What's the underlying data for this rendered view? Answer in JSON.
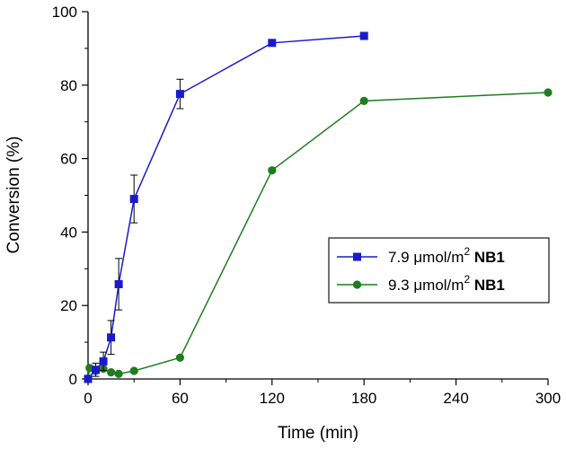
{
  "chart_data": {
    "type": "line",
    "title": "",
    "xlabel": "Time (min)",
    "ylabel": "Conversion (%)",
    "xlim": [
      0,
      300
    ],
    "ylim": [
      0,
      100
    ],
    "xticks": [
      0,
      60,
      120,
      180,
      240,
      300
    ],
    "yticks": [
      0,
      20,
      40,
      60,
      80,
      100
    ],
    "grid": false,
    "legend_position": "middle-right",
    "series": [
      {
        "name": "7.9 μmol/m² NB1",
        "legend_prefix": "7.9 ",
        "legend_unit": "μmol/m",
        "legend_sup": "2",
        "legend_bold": "NB1",
        "color": "#1a1acc",
        "marker": "square",
        "x": [
          0,
          5,
          10,
          15,
          20,
          30,
          60,
          120,
          180
        ],
        "y": [
          0,
          2.5,
          4.8,
          11.3,
          25.8,
          49.0,
          77.6,
          91.5,
          93.4
        ],
        "err": [
          0.4,
          1.8,
          2.5,
          4.6,
          7.0,
          6.5,
          4.0,
          0,
          0
        ]
      },
      {
        "name": "9.3 μmol/m² NB1",
        "legend_prefix": "9.3 ",
        "legend_unit": "μmol/m",
        "legend_sup": "2",
        "legend_bold": "NB1",
        "color": "#1e7d1e",
        "marker": "circle",
        "x": [
          0,
          1,
          5,
          10,
          15,
          20,
          30,
          60,
          120,
          180,
          300
        ],
        "y": [
          0.2,
          3.0,
          2.2,
          2.8,
          1.8,
          1.4,
          2.2,
          5.8,
          56.8,
          75.7,
          78.0
        ],
        "err": []
      }
    ]
  }
}
